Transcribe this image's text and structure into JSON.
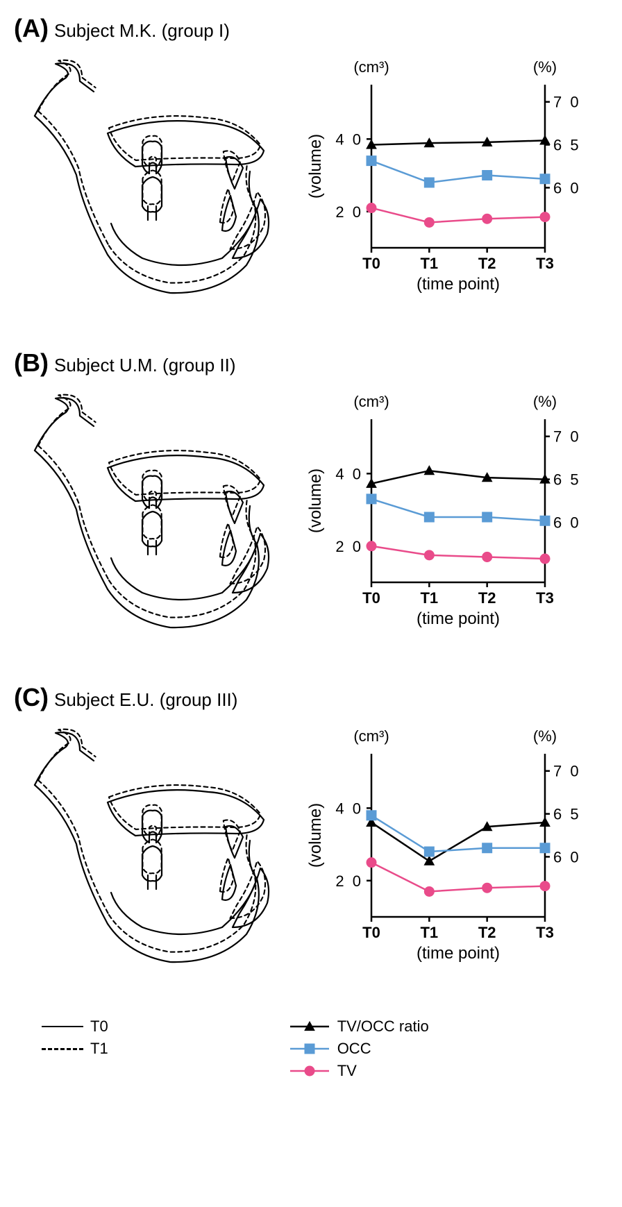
{
  "panels": [
    {
      "letter": "(A)",
      "title": "Subject M.K. (group I)",
      "chart": {
        "type": "line",
        "left_unit": "(cm³)",
        "right_unit": "(%)",
        "ylabel": "(volume)",
        "xlabel": "(time point)",
        "xticks": [
          "T0",
          "T1",
          "T2",
          "T3"
        ],
        "left_ticks": [
          20,
          40
        ],
        "right_ticks": [
          60,
          65,
          70
        ],
        "left_range": [
          10,
          55
        ],
        "right_range": [
          53,
          72
        ],
        "series": [
          {
            "name": "TV/OCC ratio",
            "axis": "right",
            "color": "#000000",
            "marker": "triangle",
            "values": [
              65,
              65.2,
              65.3,
              65.5
            ]
          },
          {
            "name": "OCC",
            "axis": "left",
            "color": "#5a9bd5",
            "marker": "square",
            "values": [
              34,
              28,
              30,
              29
            ]
          },
          {
            "name": "TV",
            "axis": "left",
            "color": "#e94b8a",
            "marker": "circle",
            "values": [
              21,
              17,
              18,
              18.5
            ]
          }
        ]
      }
    },
    {
      "letter": "(B)",
      "title": "Subject U.M. (group II)",
      "chart": {
        "type": "line",
        "left_unit": "(cm³)",
        "right_unit": "(%)",
        "ylabel": "(volume)",
        "xlabel": "(time point)",
        "xticks": [
          "T0",
          "T1",
          "T2",
          "T3"
        ],
        "left_ticks": [
          20,
          40
        ],
        "right_ticks": [
          60,
          65,
          70
        ],
        "left_range": [
          10,
          55
        ],
        "right_range": [
          53,
          72
        ],
        "series": [
          {
            "name": "TV/OCC ratio",
            "axis": "right",
            "color": "#000000",
            "marker": "triangle",
            "values": [
              64.5,
              66,
              65.2,
              65
            ]
          },
          {
            "name": "OCC",
            "axis": "left",
            "color": "#5a9bd5",
            "marker": "square",
            "values": [
              33,
              28,
              28,
              27
            ]
          },
          {
            "name": "TV",
            "axis": "left",
            "color": "#e94b8a",
            "marker": "circle",
            "values": [
              20,
              17.5,
              17,
              16.5
            ]
          }
        ]
      }
    },
    {
      "letter": "(C)",
      "title": "Subject E.U. (group III)",
      "chart": {
        "type": "line",
        "left_unit": "(cm³)",
        "right_unit": "(%)",
        "ylabel": "(volume)",
        "xlabel": "(time point)",
        "xticks": [
          "T0",
          "T1",
          "T2",
          "T3"
        ],
        "left_ticks": [
          20,
          40
        ],
        "right_ticks": [
          60,
          65,
          70
        ],
        "left_range": [
          10,
          55
        ],
        "right_range": [
          53,
          72
        ],
        "series": [
          {
            "name": "TV/OCC ratio",
            "axis": "right",
            "color": "#000000",
            "marker": "triangle",
            "values": [
              64,
              59.5,
              63.5,
              64
            ]
          },
          {
            "name": "OCC",
            "axis": "left",
            "color": "#5a9bd5",
            "marker": "square",
            "values": [
              38,
              28,
              29,
              29
            ]
          },
          {
            "name": "TV",
            "axis": "left",
            "color": "#e94b8a",
            "marker": "circle",
            "values": [
              25,
              17,
              18,
              18.5
            ]
          }
        ]
      }
    }
  ],
  "legend_lines": {
    "t0": "T0",
    "t1": "T1"
  },
  "legend_series": [
    {
      "label": "TV/OCC ratio",
      "color": "#000000",
      "marker": "triangle"
    },
    {
      "label": "OCC",
      "color": "#5a9bd5",
      "marker": "square"
    },
    {
      "label": "TV",
      "color": "#e94b8a",
      "marker": "circle"
    }
  ],
  "style": {
    "font_family": "Arial",
    "axis_color": "#000000",
    "axis_width": 2.5,
    "tick_fontsize": 22,
    "label_fontsize": 24,
    "series_line_width": 2.5,
    "marker_size": 7,
    "background": "#ffffff"
  }
}
